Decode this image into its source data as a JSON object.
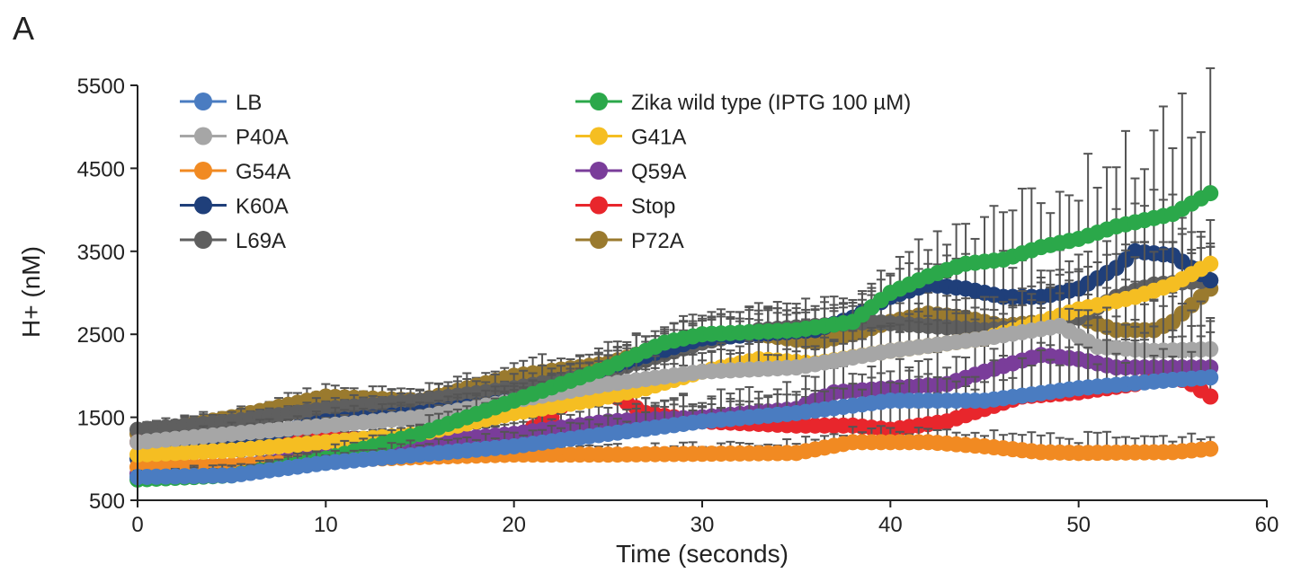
{
  "chart_data": {
    "panel_label": "A",
    "type": "scatter",
    "title": "",
    "xlabel": "Time (seconds)",
    "ylabel": "H+ (nM)",
    "xlim": [
      0,
      60
    ],
    "ylim": [
      500,
      5500
    ],
    "xticks": [
      "0",
      "10",
      "20",
      "30",
      "40",
      "50",
      "60"
    ],
    "yticks": [
      "500",
      "1500",
      "2500",
      "3500",
      "4500",
      "5500"
    ],
    "grid": false,
    "legend_position": "top-left",
    "x_sampling": {
      "start": 0,
      "end": 57,
      "step": 0.5
    },
    "series": [
      {
        "name": "LB",
        "color": "#4A7CC1",
        "anchors": [
          [
            0,
            780
          ],
          [
            5,
            800
          ],
          [
            10,
            950
          ],
          [
            15,
            1050
          ],
          [
            20,
            1150
          ],
          [
            25,
            1300
          ],
          [
            30,
            1450
          ],
          [
            35,
            1550
          ],
          [
            40,
            1700
          ],
          [
            45,
            1700
          ],
          [
            50,
            1850
          ],
          [
            55,
            1950
          ],
          [
            57,
            1980
          ]
        ],
        "error": [
          [
            0,
            80
          ],
          [
            20,
            150
          ],
          [
            40,
            300
          ],
          [
            57,
            450
          ]
        ]
      },
      {
        "name": "Zika wild type (IPTG 100 µM)",
        "color": "#2BA84A",
        "anchors": [
          [
            0,
            750
          ],
          [
            5,
            800
          ],
          [
            10,
            1000
          ],
          [
            15,
            1300
          ],
          [
            20,
            1700
          ],
          [
            25,
            2100
          ],
          [
            28,
            2400
          ],
          [
            30,
            2500
          ],
          [
            35,
            2550
          ],
          [
            38,
            2650
          ],
          [
            40,
            3000
          ],
          [
            42,
            3200
          ],
          [
            44,
            3350
          ],
          [
            46,
            3400
          ],
          [
            48,
            3550
          ],
          [
            50,
            3650
          ],
          [
            52,
            3800
          ],
          [
            55,
            3950
          ],
          [
            57,
            4200
          ]
        ],
        "error": [
          [
            0,
            80
          ],
          [
            20,
            150
          ],
          [
            40,
            300
          ],
          [
            48,
            600
          ],
          [
            57,
            1100
          ]
        ]
      },
      {
        "name": "P40A",
        "color": "#A6A6A6",
        "anchors": [
          [
            0,
            1200
          ],
          [
            5,
            1300
          ],
          [
            10,
            1400
          ],
          [
            15,
            1500
          ],
          [
            20,
            1700
          ],
          [
            25,
            1900
          ],
          [
            30,
            2050
          ],
          [
            35,
            2100
          ],
          [
            40,
            2300
          ],
          [
            45,
            2450
          ],
          [
            49,
            2600
          ],
          [
            51,
            2350
          ],
          [
            54,
            2300
          ],
          [
            57,
            2320
          ]
        ],
        "error": [
          [
            0,
            80
          ],
          [
            20,
            150
          ],
          [
            40,
            300
          ],
          [
            57,
            500
          ]
        ]
      },
      {
        "name": "G41A",
        "color": "#F5BE22",
        "anchors": [
          [
            0,
            1050
          ],
          [
            5,
            1100
          ],
          [
            10,
            1200
          ],
          [
            15,
            1300
          ],
          [
            20,
            1550
          ],
          [
            24,
            1700
          ],
          [
            27,
            1850
          ],
          [
            30,
            2050
          ],
          [
            33,
            2200
          ],
          [
            36,
            2150
          ],
          [
            40,
            2300
          ],
          [
            45,
            2450
          ],
          [
            48,
            2650
          ],
          [
            50,
            2800
          ],
          [
            53,
            2950
          ],
          [
            55,
            3100
          ],
          [
            57,
            3350
          ]
        ],
        "error": [
          [
            0,
            80
          ],
          [
            20,
            150
          ],
          [
            40,
            300
          ],
          [
            57,
            500
          ]
        ]
      },
      {
        "name": "G54A",
        "color": "#F18A22",
        "anchors": [
          [
            0,
            900
          ],
          [
            5,
            920
          ],
          [
            10,
            980
          ],
          [
            15,
            1020
          ],
          [
            20,
            1050
          ],
          [
            25,
            1050
          ],
          [
            30,
            1060
          ],
          [
            35,
            1070
          ],
          [
            38,
            1200
          ],
          [
            42,
            1200
          ],
          [
            45,
            1150
          ],
          [
            48,
            1080
          ],
          [
            50,
            1070
          ],
          [
            55,
            1080
          ],
          [
            57,
            1120
          ]
        ],
        "error": [
          [
            0,
            80
          ],
          [
            20,
            80
          ],
          [
            40,
            150
          ],
          [
            50,
            200
          ],
          [
            57,
            150
          ]
        ]
      },
      {
        "name": "Q59A",
        "color": "#7A3D9A",
        "anchors": [
          [
            0,
            820
          ],
          [
            5,
            900
          ],
          [
            10,
            1050
          ],
          [
            15,
            1200
          ],
          [
            20,
            1300
          ],
          [
            25,
            1450
          ],
          [
            30,
            1500
          ],
          [
            35,
            1600
          ],
          [
            37,
            1800
          ],
          [
            40,
            1850
          ],
          [
            43,
            1900
          ],
          [
            45,
            2050
          ],
          [
            48,
            2250
          ],
          [
            50,
            2200
          ],
          [
            52,
            2100
          ],
          [
            55,
            2100
          ],
          [
            57,
            2100
          ]
        ],
        "error": [
          [
            0,
            80
          ],
          [
            20,
            150
          ],
          [
            40,
            300
          ],
          [
            57,
            450
          ]
        ]
      },
      {
        "name": "K60A",
        "color": "#1F3F7A",
        "anchors": [
          [
            0,
            1000
          ],
          [
            5,
            1200
          ],
          [
            10,
            1450
          ],
          [
            15,
            1550
          ],
          [
            20,
            1700
          ],
          [
            22,
            1800
          ],
          [
            25,
            2100
          ],
          [
            30,
            2450
          ],
          [
            33,
            2500
          ],
          [
            36,
            2550
          ],
          [
            38,
            2700
          ],
          [
            40,
            2950
          ],
          [
            42,
            3100
          ],
          [
            44,
            3050
          ],
          [
            46,
            2950
          ],
          [
            48,
            2950
          ],
          [
            50,
            3050
          ],
          [
            52,
            3300
          ],
          [
            53,
            3500
          ],
          [
            55,
            3450
          ],
          [
            57,
            3150
          ]
        ],
        "error": [
          [
            0,
            80
          ],
          [
            20,
            150
          ],
          [
            40,
            300
          ],
          [
            50,
            500
          ],
          [
            57,
            600
          ]
        ]
      },
      {
        "name": "Stop",
        "color": "#E8262C",
        "anchors": [
          [
            0,
            1200
          ],
          [
            5,
            1150
          ],
          [
            10,
            1250
          ],
          [
            15,
            1200
          ],
          [
            20,
            1250
          ],
          [
            22,
            1500
          ],
          [
            23,
            1750
          ],
          [
            24,
            1850
          ],
          [
            25,
            1800
          ],
          [
            27,
            1550
          ],
          [
            30,
            1450
          ],
          [
            35,
            1400
          ],
          [
            38,
            1400
          ],
          [
            40,
            1350
          ],
          [
            43,
            1450
          ],
          [
            45,
            1600
          ],
          [
            47,
            1750
          ],
          [
            50,
            1800
          ],
          [
            53,
            1900
          ],
          [
            55,
            2000
          ],
          [
            56,
            1900
          ],
          [
            57,
            1750
          ]
        ],
        "error": [
          [
            0,
            80
          ],
          [
            20,
            150
          ],
          [
            40,
            300
          ],
          [
            50,
            500
          ],
          [
            57,
            300
          ]
        ]
      },
      {
        "name": "L69A",
        "color": "#5F5F5F",
        "anchors": [
          [
            0,
            1350
          ],
          [
            5,
            1450
          ],
          [
            10,
            1600
          ],
          [
            15,
            1700
          ],
          [
            20,
            1850
          ],
          [
            25,
            2050
          ],
          [
            30,
            2400
          ],
          [
            33,
            2550
          ],
          [
            36,
            2600
          ],
          [
            39,
            2650
          ],
          [
            42,
            2600
          ],
          [
            45,
            2550
          ],
          [
            48,
            2600
          ],
          [
            50,
            2700
          ],
          [
            52,
            2950
          ],
          [
            54,
            3100
          ],
          [
            57,
            3150
          ]
        ],
        "error": [
          [
            0,
            80
          ],
          [
            20,
            150
          ],
          [
            40,
            300
          ],
          [
            57,
            500
          ]
        ]
      },
      {
        "name": "P72A",
        "color": "#9A7A2E",
        "anchors": [
          [
            0,
            1300
          ],
          [
            5,
            1500
          ],
          [
            10,
            1750
          ],
          [
            15,
            1700
          ],
          [
            20,
            2000
          ],
          [
            25,
            2150
          ],
          [
            30,
            2500
          ],
          [
            33,
            2500
          ],
          [
            36,
            2400
          ],
          [
            38,
            2500
          ],
          [
            40,
            2650
          ],
          [
            42,
            2750
          ],
          [
            44,
            2700
          ],
          [
            46,
            2600
          ],
          [
            48,
            2650
          ],
          [
            50,
            2700
          ],
          [
            52,
            2550
          ],
          [
            54,
            2550
          ],
          [
            55,
            2650
          ],
          [
            57,
            3050
          ]
        ],
        "error": [
          [
            0,
            80
          ],
          [
            20,
            150
          ],
          [
            40,
            300
          ],
          [
            57,
            500
          ]
        ]
      }
    ]
  }
}
